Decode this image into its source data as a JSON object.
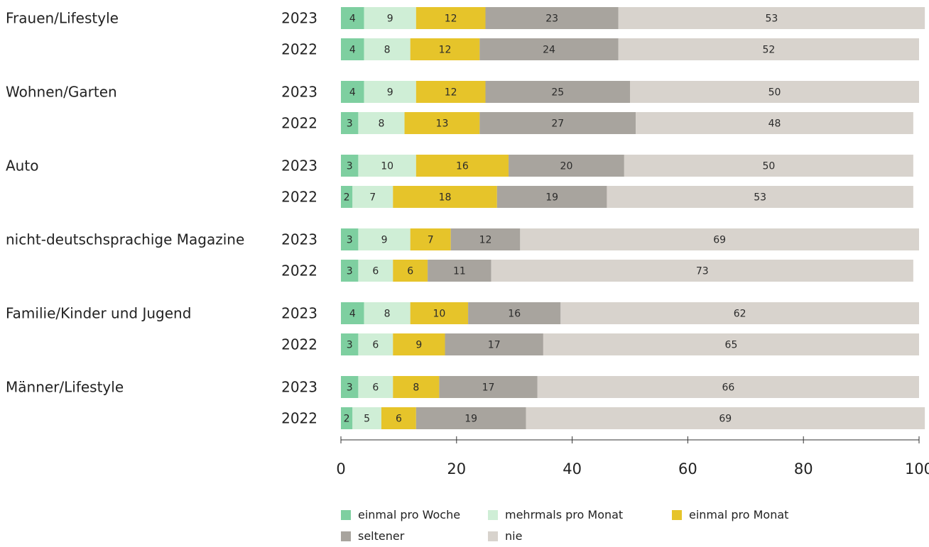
{
  "chart_data": {
    "type": "bar",
    "orientation": "horizontal",
    "stacked": true,
    "title": "",
    "xlabel": "",
    "ylabel": "",
    "xlim": [
      0,
      100
    ],
    "x_ticks": [
      0,
      20,
      40,
      60,
      80,
      100
    ],
    "x_tick_labels": [
      "0",
      "20",
      "40",
      "60",
      "80",
      "100"
    ],
    "grid": false,
    "legend_position": "bottom",
    "series": [
      {
        "name": "einmal pro Woche",
        "color": "#7ecfa0"
      },
      {
        "name": "mehrmals pro Monat",
        "color": "#cfeed6"
      },
      {
        "name": "einmal pro Monat",
        "color": "#e6c42a"
      },
      {
        "name": "seltener",
        "color": "#a8a49e"
      },
      {
        "name": "nie",
        "color": "#d8d3cd"
      }
    ],
    "groups": [
      {
        "category": "Frauen/Lifestyle",
        "bars": [
          {
            "year": "2023",
            "values": [
              4,
              9,
              12,
              23,
              53
            ]
          },
          {
            "year": "2022",
            "values": [
              4,
              8,
              12,
              24,
              52
            ]
          }
        ]
      },
      {
        "category": "Wohnen/Garten",
        "bars": [
          {
            "year": "2023",
            "values": [
              4,
              9,
              12,
              25,
              50
            ]
          },
          {
            "year": "2022",
            "values": [
              3,
              8,
              13,
              27,
              48
            ]
          }
        ]
      },
      {
        "category": "Auto",
        "bars": [
          {
            "year": "2023",
            "values": [
              3,
              10,
              16,
              20,
              50
            ]
          },
          {
            "year": "2022",
            "values": [
              2,
              7,
              18,
              19,
              53
            ]
          }
        ]
      },
      {
        "category": "nicht-deutschsprachige Magazine",
        "bars": [
          {
            "year": "2023",
            "values": [
              3,
              9,
              7,
              12,
              69
            ]
          },
          {
            "year": "2022",
            "values": [
              3,
              6,
              6,
              11,
              73
            ]
          }
        ]
      },
      {
        "category": "Familie/Kinder und Jugend",
        "bars": [
          {
            "year": "2023",
            "values": [
              4,
              8,
              10,
              16,
              62
            ]
          },
          {
            "year": "2022",
            "values": [
              3,
              6,
              9,
              17,
              65
            ]
          }
        ]
      },
      {
        "category": "Männer/Lifestyle",
        "bars": [
          {
            "year": "2023",
            "values": [
              3,
              6,
              8,
              17,
              66
            ]
          },
          {
            "year": "2022",
            "values": [
              2,
              5,
              6,
              19,
              69
            ]
          }
        ]
      }
    ]
  }
}
